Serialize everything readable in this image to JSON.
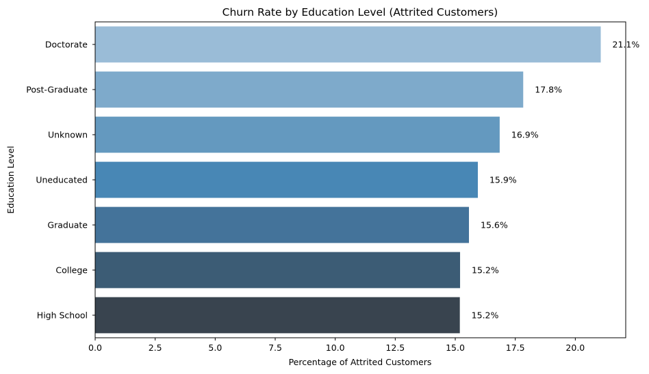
{
  "chart_data": {
    "type": "bar",
    "orientation": "horizontal",
    "title": "Churn Rate by Education Level (Attrited Customers)",
    "xlabel": "Percentage of Attrited Customers",
    "ylabel": "Education Level",
    "categories": [
      "Doctorate",
      "Post-Graduate",
      "Unknown",
      "Uneducated",
      "Graduate",
      "College",
      "High School"
    ],
    "values": [
      21.06,
      17.83,
      16.85,
      15.94,
      15.57,
      15.2,
      15.19
    ],
    "data_labels": [
      "21.1%",
      "17.8%",
      "16.9%",
      "15.9%",
      "15.6%",
      "15.2%",
      "15.2%"
    ],
    "colors": [
      "#9ABCD7",
      "#7EAACB",
      "#6499BF",
      "#4887B5",
      "#44739A",
      "#3C5C75",
      "#39444F"
    ],
    "xlim": [
      0,
      22.1
    ],
    "xticks": [
      0.0,
      2.5,
      5.0,
      7.5,
      10.0,
      12.5,
      15.0,
      17.5,
      20.0
    ],
    "xtick_labels": [
      "0.0",
      "2.5",
      "5.0",
      "7.5",
      "10.0",
      "12.5",
      "15.0",
      "17.5",
      "20.0"
    ],
    "grid": false,
    "legend": "none"
  }
}
